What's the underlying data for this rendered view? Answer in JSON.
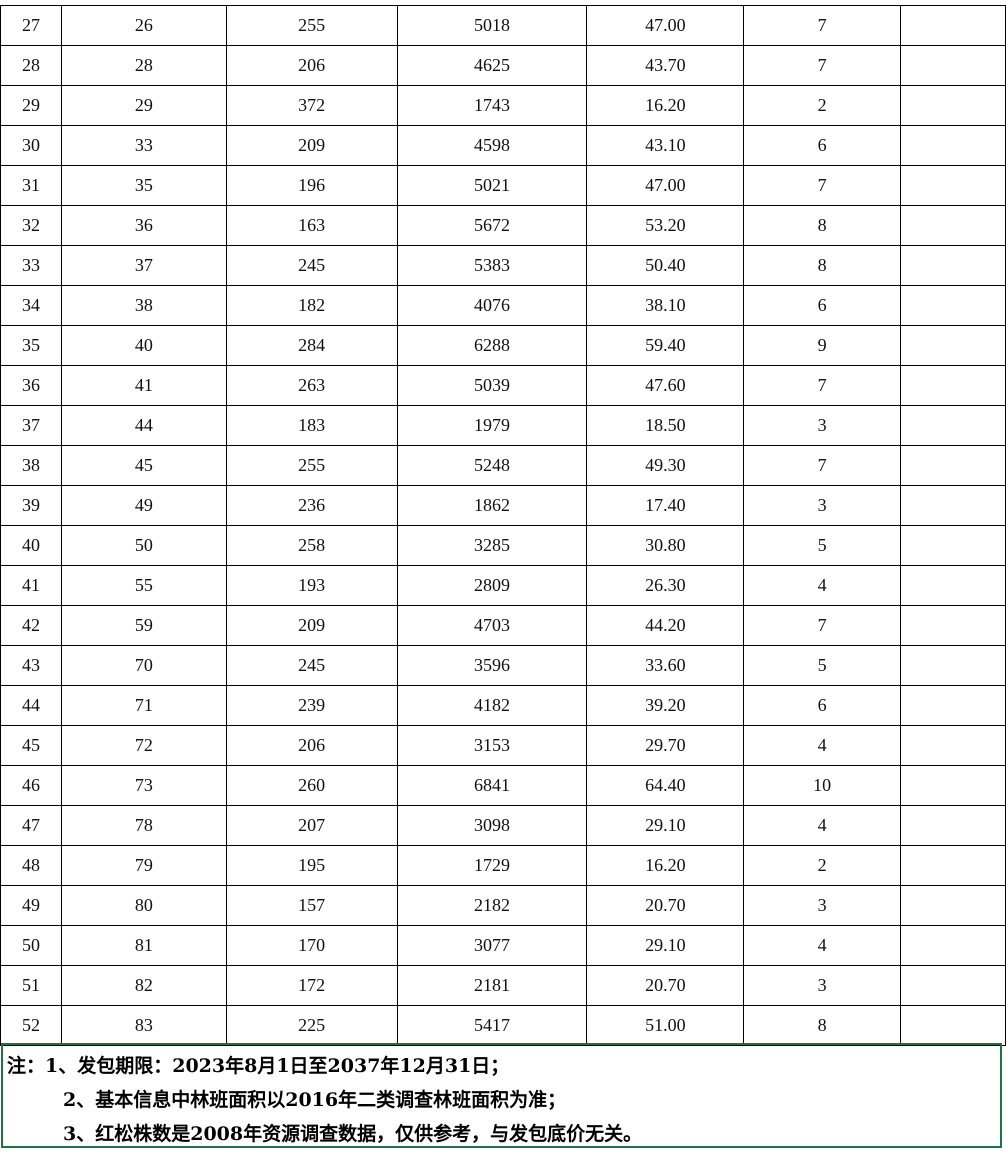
{
  "rows": [
    [
      "27",
      "26",
      "255",
      "5018",
      "47.00",
      "7",
      ""
    ],
    [
      "28",
      "28",
      "206",
      "4625",
      "43.70",
      "7",
      ""
    ],
    [
      "29",
      "29",
      "372",
      "1743",
      "16.20",
      "2",
      ""
    ],
    [
      "30",
      "33",
      "209",
      "4598",
      "43.10",
      "6",
      ""
    ],
    [
      "31",
      "35",
      "196",
      "5021",
      "47.00",
      "7",
      ""
    ],
    [
      "32",
      "36",
      "163",
      "5672",
      "53.20",
      "8",
      ""
    ],
    [
      "33",
      "37",
      "245",
      "5383",
      "50.40",
      "8",
      ""
    ],
    [
      "34",
      "38",
      "182",
      "4076",
      "38.10",
      "6",
      ""
    ],
    [
      "35",
      "40",
      "284",
      "6288",
      "59.40",
      "9",
      ""
    ],
    [
      "36",
      "41",
      "263",
      "5039",
      "47.60",
      "7",
      ""
    ],
    [
      "37",
      "44",
      "183",
      "1979",
      "18.50",
      "3",
      ""
    ],
    [
      "38",
      "45",
      "255",
      "5248",
      "49.30",
      "7",
      ""
    ],
    [
      "39",
      "49",
      "236",
      "1862",
      "17.40",
      "3",
      ""
    ],
    [
      "40",
      "50",
      "258",
      "3285",
      "30.80",
      "5",
      ""
    ],
    [
      "41",
      "55",
      "193",
      "2809",
      "26.30",
      "4",
      ""
    ],
    [
      "42",
      "59",
      "209",
      "4703",
      "44.20",
      "7",
      ""
    ],
    [
      "43",
      "70",
      "245",
      "3596",
      "33.60",
      "5",
      ""
    ],
    [
      "44",
      "71",
      "239",
      "4182",
      "39.20",
      "6",
      ""
    ],
    [
      "45",
      "72",
      "206",
      "3153",
      "29.70",
      "4",
      ""
    ],
    [
      "46",
      "73",
      "260",
      "6841",
      "64.40",
      "10",
      ""
    ],
    [
      "47",
      "78",
      "207",
      "3098",
      "29.10",
      "4",
      ""
    ],
    [
      "48",
      "79",
      "195",
      "1729",
      "16.20",
      "2",
      ""
    ],
    [
      "49",
      "80",
      "157",
      "2182",
      "20.70",
      "3",
      ""
    ],
    [
      "50",
      "81",
      "170",
      "3077",
      "29.10",
      "4",
      ""
    ],
    [
      "51",
      "82",
      "172",
      "2181",
      "20.70",
      "3",
      ""
    ],
    [
      "52",
      "83",
      "225",
      "5417",
      "51.00",
      "8",
      ""
    ]
  ],
  "notes": [
    "注：1、发包期限：2023年8月1日至2037年12月31日；",
    "2、基本信息中林班面积以2016年二类调查林班面积为准；",
    "3、红松株数是2008年资源调查数据，仅供参考，与发包底价无关。"
  ],
  "colors": {
    "selection_border": "#217346"
  }
}
